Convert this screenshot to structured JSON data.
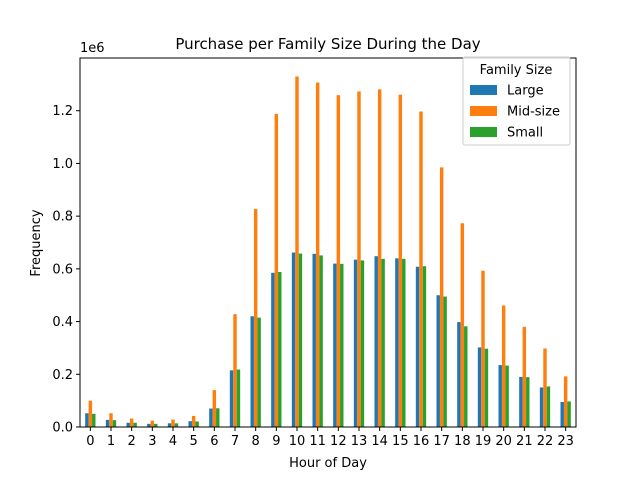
{
  "chart_data": {
    "type": "bar",
    "title": "Purchase per Family Size During the Day",
    "xlabel": "Hour of Day",
    "ylabel": "Frequency",
    "y_scale_label": "1e6",
    "ylim": [
      0,
      1400000
    ],
    "yticks": [
      0,
      200000,
      400000,
      600000,
      800000,
      1000000,
      1200000
    ],
    "ytick_labels": [
      "0.0",
      "0.2",
      "0.4",
      "0.6",
      "0.8",
      "1.0",
      "1.2"
    ],
    "categories": [
      "0",
      "1",
      "2",
      "3",
      "4",
      "5",
      "6",
      "7",
      "8",
      "9",
      "10",
      "11",
      "12",
      "13",
      "14",
      "15",
      "16",
      "17",
      "18",
      "19",
      "20",
      "21",
      "22",
      "23"
    ],
    "legend_title": "Family Size",
    "legend_position": "top-right",
    "grid": false,
    "series": [
      {
        "name": "Large",
        "color": "#1f77b4",
        "values": [
          52000,
          27000,
          16000,
          12000,
          14000,
          22000,
          70000,
          215000,
          420000,
          585000,
          662000,
          657000,
          620000,
          635000,
          648000,
          640000,
          608000,
          500000,
          398000,
          302000,
          235000,
          190000,
          150000,
          95000
        ]
      },
      {
        "name": "Mid-size",
        "color": "#ff7f0e",
        "values": [
          100000,
          52000,
          32000,
          24000,
          28000,
          42000,
          140000,
          428000,
          827000,
          1188000,
          1330000,
          1307000,
          1259000,
          1273000,
          1281000,
          1261000,
          1197000,
          985000,
          773000,
          593000,
          461000,
          380000,
          298000,
          192000
        ]
      },
      {
        "name": "Small",
        "color": "#2ca02c",
        "values": [
          50000,
          26000,
          16000,
          12000,
          14000,
          21000,
          71000,
          218000,
          415000,
          588000,
          658000,
          651000,
          619000,
          632000,
          638000,
          638000,
          610000,
          495000,
          382000,
          297000,
          233000,
          189000,
          154000,
          97000
        ]
      }
    ]
  }
}
